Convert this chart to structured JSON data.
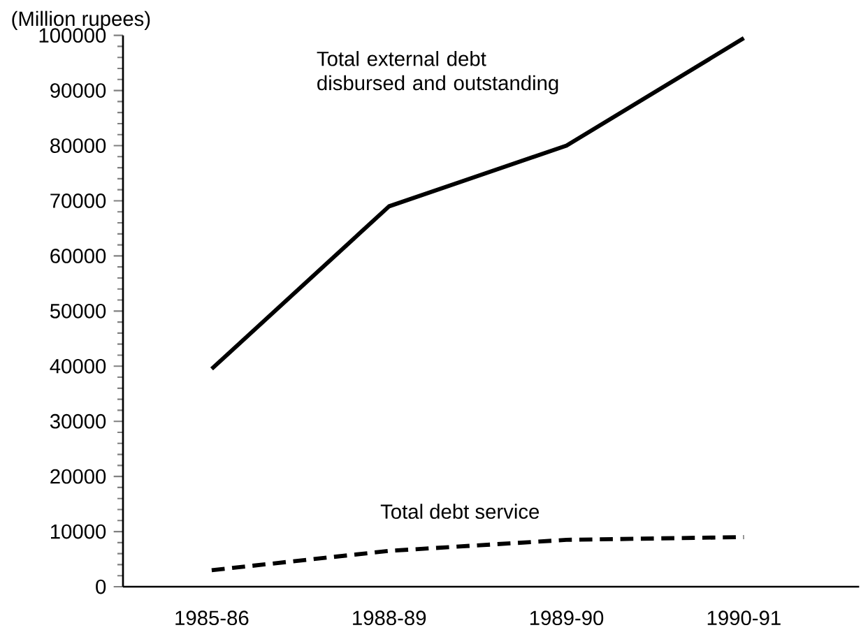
{
  "chart_data": {
    "type": "line",
    "ylabel": "(Million rupees)",
    "categories": [
      "1985-86",
      "1988-89",
      "1989-90",
      "1990-91"
    ],
    "series": [
      {
        "name": "Total external debt disbursed and outstanding",
        "color": "#000000",
        "line_style": "solid",
        "values": [
          39500,
          69000,
          80000,
          99500
        ]
      },
      {
        "name": "Total debt service",
        "color": "#000000",
        "line_style": "dashed",
        "values": [
          3000,
          6500,
          8500,
          9000
        ]
      }
    ],
    "ylim": [
      0,
      100000
    ],
    "yticks": [
      0,
      10000,
      20000,
      30000,
      40000,
      50000,
      60000,
      70000,
      80000,
      90000,
      100000
    ],
    "grid": false,
    "marker": "none"
  }
}
